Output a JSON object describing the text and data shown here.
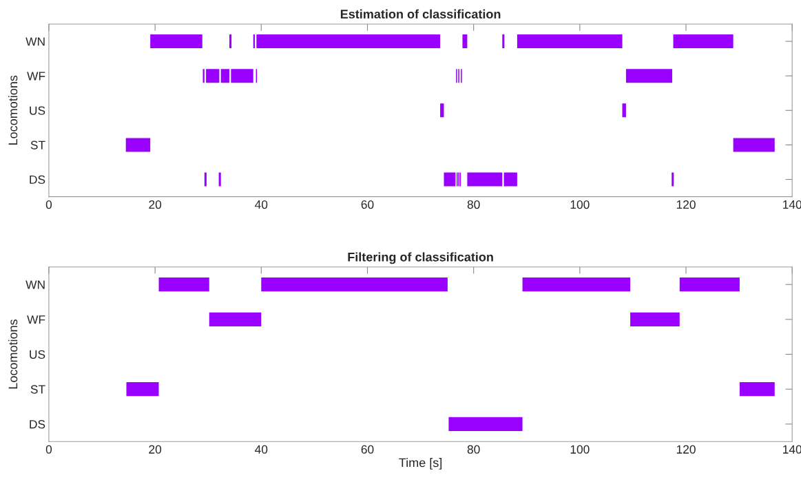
{
  "chart_data": [
    {
      "type": "bar",
      "orientation": "horizontal",
      "title": "Estimation of classification",
      "ylabel": "Locomotions",
      "grid": false,
      "xlim": [
        0,
        140
      ],
      "xticks": [
        0,
        20,
        40,
        60,
        80,
        100,
        120,
        140
      ],
      "categories": [
        "WN",
        "WF",
        "US",
        "ST",
        "DS"
      ],
      "series": [
        {
          "color": "#9900ff",
          "base": [
            19.1,
            29.0,
            73.7,
            14.5,
            29.3
          ],
          "values": [
            9.8,
            0.3,
            0.7,
            4.6,
            0.4
          ]
        },
        {
          "color": "#9900ff",
          "base": [
            34.0,
            29.6,
            108.0,
            128.9,
            32.0
          ],
          "values": [
            0.4,
            2.5,
            0.7,
            7.8,
            0.4
          ]
        },
        {
          "color": "#9900ff",
          "base": [
            38.5,
            32.4,
            null,
            null,
            74.4
          ],
          "values": [
            0.3,
            1.6,
            null,
            null,
            2.2
          ]
        },
        {
          "color": "#9900ff",
          "base": [
            39.1,
            34.3,
            null,
            null,
            76.8
          ],
          "values": [
            34.6,
            4.2,
            null,
            null,
            0.2
          ]
        },
        {
          "color": "#9900ff",
          "base": [
            77.9,
            39.0,
            null,
            null,
            77.1
          ],
          "values": [
            0.9,
            0.2,
            null,
            null,
            0.2
          ]
        },
        {
          "color": "#9900ff",
          "base": [
            85.4,
            76.7,
            null,
            null,
            77.4
          ],
          "values": [
            0.4,
            0.2,
            null,
            null,
            0.2
          ]
        },
        {
          "color": "#9900ff",
          "base": [
            88.2,
            77.1,
            null,
            null,
            78.8
          ],
          "values": [
            19.8,
            0.2,
            null,
            null,
            6.6
          ]
        },
        {
          "color": "#9900ff",
          "base": [
            117.6,
            77.6,
            null,
            null,
            85.7
          ],
          "values": [
            11.3,
            0.2,
            null,
            null,
            2.5
          ]
        },
        {
          "color": "#9900ff",
          "base": [
            null,
            108.7,
            null,
            null,
            117.3
          ],
          "values": [
            null,
            8.7,
            null,
            null,
            0.4
          ]
        }
      ]
    },
    {
      "type": "bar",
      "orientation": "horizontal",
      "title": "Filtering of classification",
      "xlabel": "Time [s]",
      "ylabel": "Locomotions",
      "grid": false,
      "xlim": [
        0,
        140
      ],
      "xticks": [
        0,
        20,
        40,
        60,
        80,
        100,
        120,
        140
      ],
      "categories": [
        "WN",
        "WF",
        "US",
        "ST",
        "DS"
      ],
      "series": [
        {
          "color": "#9900ff",
          "base": [
            20.7,
            30.2,
            null,
            14.6,
            75.3
          ],
          "values": [
            9.5,
            9.8,
            null,
            6.1,
            13.9
          ]
        },
        {
          "color": "#9900ff",
          "base": [
            40.0,
            109.5,
            null,
            130.1,
            null
          ],
          "values": [
            35.1,
            9.3,
            null,
            6.6,
            null
          ]
        },
        {
          "color": "#9900ff",
          "base": [
            89.2,
            null,
            null,
            null,
            null
          ],
          "values": [
            20.3,
            null,
            null,
            null,
            null
          ]
        },
        {
          "color": "#9900ff",
          "base": [
            118.8,
            null,
            null,
            null,
            null
          ],
          "values": [
            11.3,
            null,
            null,
            null,
            null
          ]
        }
      ]
    }
  ]
}
